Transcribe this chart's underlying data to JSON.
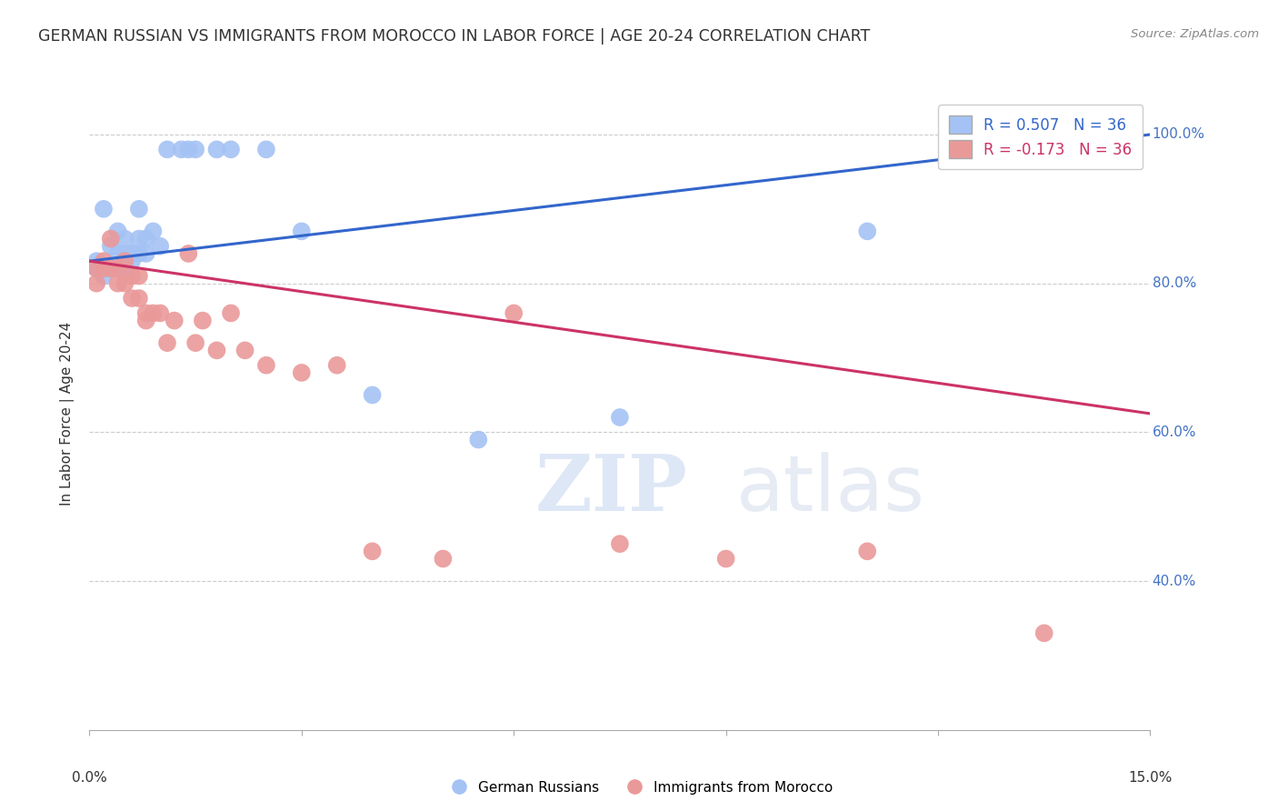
{
  "title": "GERMAN RUSSIAN VS IMMIGRANTS FROM MOROCCO IN LABOR FORCE | AGE 20-24 CORRELATION CHART",
  "source": "Source: ZipAtlas.com",
  "ylabel": "In Labor Force | Age 20-24",
  "xmin": 0.0,
  "xmax": 0.15,
  "ymin": 0.2,
  "ymax": 1.05,
  "yticks": [
    0.4,
    0.6,
    0.8,
    1.0
  ],
  "ytick_labels": [
    "40.0%",
    "60.0%",
    "80.0%",
    "100.0%"
  ],
  "blue_R": 0.507,
  "blue_N": 36,
  "pink_R": -0.173,
  "pink_N": 36,
  "blue_color": "#a4c2f4",
  "pink_color": "#ea9999",
  "blue_line_color": "#3366cc",
  "pink_line_color": "#cc3366",
  "legend_blue_label": "German Russians",
  "legend_pink_label": "Immigrants from Morocco",
  "watermark_zip": "ZIP",
  "watermark_atlas": "atlas",
  "blue_points_x": [
    0.001,
    0.001,
    0.002,
    0.002,
    0.003,
    0.003,
    0.003,
    0.004,
    0.004,
    0.004,
    0.005,
    0.005,
    0.005,
    0.005,
    0.006,
    0.006,
    0.006,
    0.007,
    0.007,
    0.007,
    0.008,
    0.008,
    0.009,
    0.01,
    0.011,
    0.013,
    0.014,
    0.015,
    0.018,
    0.02,
    0.025,
    0.03,
    0.04,
    0.055,
    0.075,
    0.11
  ],
  "blue_points_y": [
    0.83,
    0.82,
    0.81,
    0.9,
    0.82,
    0.82,
    0.85,
    0.82,
    0.84,
    0.87,
    0.82,
    0.83,
    0.84,
    0.86,
    0.83,
    0.84,
    0.84,
    0.84,
    0.86,
    0.9,
    0.84,
    0.86,
    0.87,
    0.85,
    0.98,
    0.98,
    0.98,
    0.98,
    0.98,
    0.98,
    0.98,
    0.87,
    0.65,
    0.59,
    0.62,
    0.87
  ],
  "pink_points_x": [
    0.001,
    0.001,
    0.002,
    0.002,
    0.003,
    0.003,
    0.004,
    0.004,
    0.005,
    0.005,
    0.006,
    0.006,
    0.007,
    0.007,
    0.008,
    0.008,
    0.009,
    0.01,
    0.011,
    0.012,
    0.014,
    0.015,
    0.016,
    0.018,
    0.02,
    0.022,
    0.025,
    0.03,
    0.035,
    0.04,
    0.05,
    0.06,
    0.075,
    0.09,
    0.11,
    0.135
  ],
  "pink_points_y": [
    0.82,
    0.8,
    0.83,
    0.82,
    0.82,
    0.86,
    0.82,
    0.8,
    0.83,
    0.8,
    0.81,
    0.78,
    0.81,
    0.78,
    0.76,
    0.75,
    0.76,
    0.76,
    0.72,
    0.75,
    0.84,
    0.72,
    0.75,
    0.71,
    0.76,
    0.71,
    0.69,
    0.68,
    0.69,
    0.44,
    0.43,
    0.76,
    0.45,
    0.43,
    0.44,
    0.33
  ]
}
